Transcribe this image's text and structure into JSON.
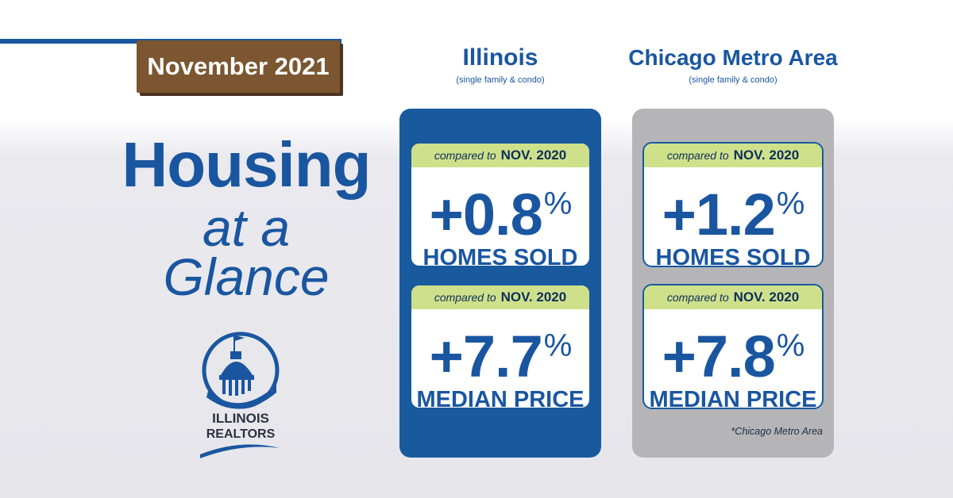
{
  "date_badge": "November 2021",
  "title": {
    "line1": "Housing",
    "line2": "at a",
    "line3": "Glance"
  },
  "logo": {
    "line1": "ILLINOIS",
    "line2": "REALTORS",
    "icon": "capitol-dome-icon"
  },
  "columns": [
    {
      "name": "Illinois",
      "subtitle": "(single family & condo)",
      "cards": [
        {
          "compared_prefix": "compared to",
          "compared_date": "NOV. 2020",
          "value": "+0.8",
          "unit": "%",
          "label": "HOMES SOLD"
        },
        {
          "compared_prefix": "compared to",
          "compared_date": "NOV. 2020",
          "value": "+7.7",
          "unit": "%",
          "label": "MEDIAN PRICE"
        }
      ]
    },
    {
      "name": "Chicago Metro Area",
      "subtitle": "(single family & condo)",
      "cards": [
        {
          "compared_prefix": "compared to",
          "compared_date": "NOV. 2020",
          "value": "+1.2",
          "unit": "%",
          "label": "HOMES SOLD"
        },
        {
          "compared_prefix": "compared to",
          "compared_date": "NOV. 2020",
          "value": "+7.8",
          "unit": "%",
          "label": "MEDIAN PRICE"
        }
      ],
      "footnote": "*Chicago Metro Area"
    }
  ],
  "colors": {
    "brand_blue": "#1a56a0",
    "badge_brown": "#7b5630",
    "highlight_green": "#cfe08a",
    "panel_gray": "#b5b5b8"
  }
}
